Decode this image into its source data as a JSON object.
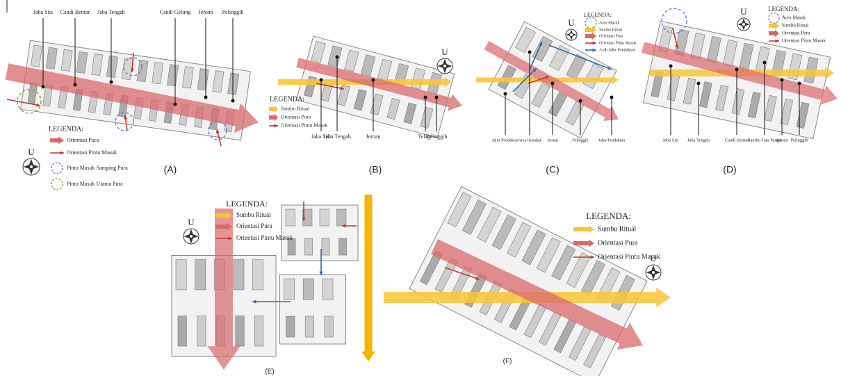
{
  "panels": [
    {
      "caption": "(A)",
      "compass": "U",
      "labels": [
        "Jaba Sisi",
        "Candi Bentar",
        "Jaba Tengah",
        "Candi Gelung",
        "Jeroan",
        "Pelinggih"
      ],
      "legend": {
        "title": "LEGENDA:",
        "items": [
          "Orientasi Pura",
          "Orientasi Pintu Masuk",
          "Pintu Masuk Samping Pura",
          "Pintu Masuk Utama Pura"
        ]
      }
    },
    {
      "caption": "(B)",
      "compass": "U",
      "labels": [
        "Jaba Sisi",
        "Jaba Tengah",
        "Jeroan",
        "Telaga",
        "Pelinggih"
      ],
      "legend": {
        "title": "LEGENDA:",
        "items": [
          "Sumbu Ritual",
          "Orientasi Pura",
          "Orientasi Pintu Masuk"
        ]
      }
    },
    {
      "caption": "(C)",
      "compass": "U",
      "labels": [
        "Jalur Pendakian",
        "Area Istirahat",
        "Jeroan",
        "Pelinggih",
        "Jalur Pendakian"
      ],
      "legend": {
        "title": "LEGENDA:",
        "items": [
          "Area Masuk",
          "Sumbu Ritual",
          "Orientasi Pura",
          "Orientasi Pintu Masuk",
          "Arah Jalur Pendakian"
        ]
      }
    },
    {
      "caption": "(D)",
      "compass": "U",
      "labels": [
        "Jaba Sisi",
        "Jaba Tengah",
        "Candi Bentar",
        "Bambu Tata Pangit",
        "Jeroan",
        "Pelinggih"
      ],
      "legend": {
        "title": "LEGENDA:",
        "items": [
          "Area Masuk",
          "Sumbu Ritual",
          "Orientasi Pura",
          "Orientasi Pintu Masuk"
        ]
      }
    },
    {
      "caption": "(E)",
      "compass": "U",
      "labels": [],
      "legend": {
        "title": "LEGENDA:",
        "items": [
          "Sumbu Ritual",
          "Orientasi Pura",
          "Orientasi Pintu Masuk"
        ]
      }
    },
    {
      "caption": "(F)",
      "compass": "U",
      "labels": [],
      "legend": {
        "title": "LEGENDA:",
        "items": [
          "Sumbu Ritual",
          "Orientasi Pura",
          "Orientasi Pintu Masuk"
        ]
      }
    }
  ]
}
